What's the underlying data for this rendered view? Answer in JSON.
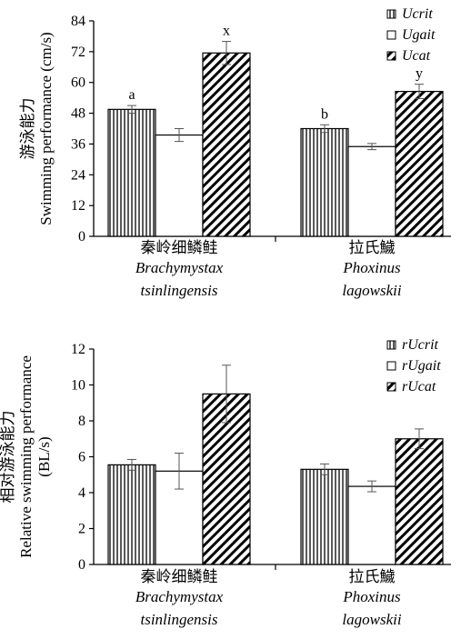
{
  "chart_data": [
    {
      "type": "bar",
      "ylabel_cn": "游泳能力",
      "ylabel": "Swimming performance (cm/s)",
      "ylim": [
        0,
        84
      ],
      "yticks": [
        0,
        12,
        24,
        36,
        48,
        60,
        72,
        84
      ],
      "categories": [
        {
          "cn": "秦岭细鳞鲑",
          "species": [
            "Brachymystax",
            "tsinlingensis"
          ]
        },
        {
          "cn": "拉氏鱥",
          "species": [
            "Phoxinus",
            "lagowskii"
          ]
        }
      ],
      "series": [
        {
          "name": "Ucrit",
          "pattern": "vertical",
          "values": [
            49.5,
            42.0
          ],
          "errors": [
            1.5,
            1.5
          ]
        },
        {
          "name": "Ugait",
          "pattern": "none",
          "values": [
            39.5,
            35.0
          ],
          "errors": [
            2.5,
            1.2
          ]
        },
        {
          "name": "Ucat",
          "pattern": "diagonal",
          "values": [
            71.5,
            56.5
          ],
          "errors": [
            4.5,
            2.8
          ]
        }
      ],
      "annotations": [
        {
          "series": 0,
          "category": 0,
          "text": "a"
        },
        {
          "series": 0,
          "category": 1,
          "text": "b"
        },
        {
          "series": 2,
          "category": 0,
          "text": "x"
        },
        {
          "series": 2,
          "category": 1,
          "text": "y"
        }
      ],
      "legend": "top-right"
    },
    {
      "type": "bar",
      "ylabel_cn": "相对游泳能力",
      "ylabel": "Relative swimming performance",
      "ylabel2": "(BL/s)",
      "ylim": [
        0,
        12
      ],
      "yticks": [
        0,
        2,
        4,
        6,
        8,
        10,
        12
      ],
      "categories": [
        {
          "cn": "秦岭细鳞鲑",
          "species": [
            "Brachymystax",
            "tsinlingensis"
          ]
        },
        {
          "cn": "拉氏鱥",
          "species": [
            "Phoxinus",
            "lagowskii"
          ]
        }
      ],
      "series": [
        {
          "name": "rUcrit",
          "pattern": "vertical",
          "values": [
            5.55,
            5.3
          ],
          "errors": [
            0.3,
            0.3
          ]
        },
        {
          "name": "rUgait",
          "pattern": "none",
          "values": [
            5.2,
            4.35
          ],
          "errors": [
            1.0,
            0.3
          ]
        },
        {
          "name": "rUcat",
          "pattern": "diagonal",
          "values": [
            9.5,
            7.0
          ],
          "errors": [
            1.6,
            0.55
          ]
        }
      ],
      "annotations": [],
      "legend": "top-right"
    }
  ]
}
